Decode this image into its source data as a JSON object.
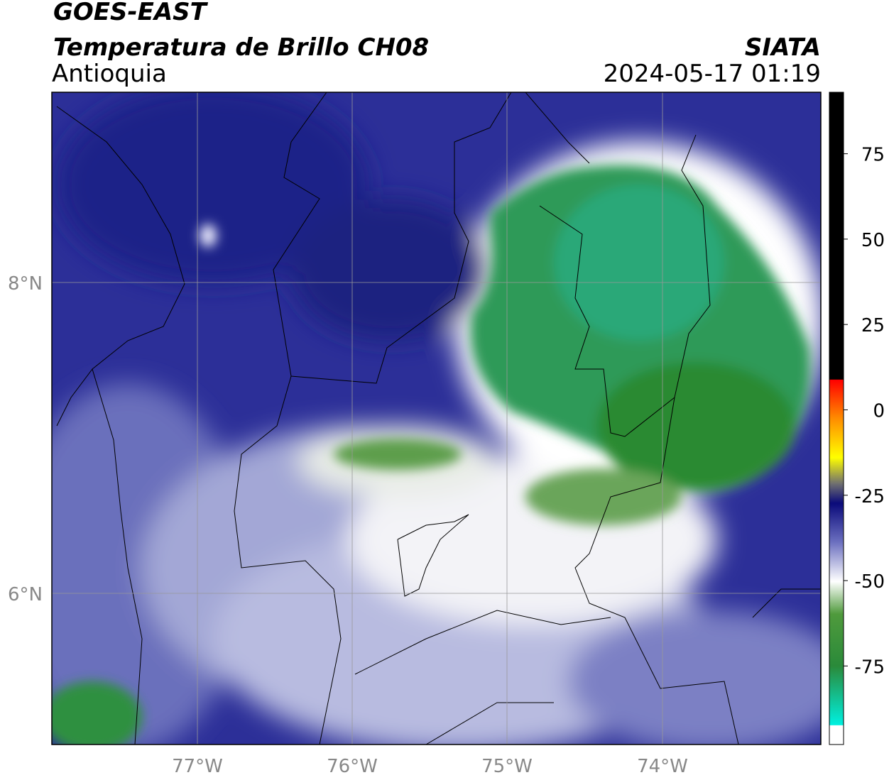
{
  "header": {
    "title": "GOES-EAST",
    "subtitle": "Temperatura de Brillo CH08",
    "region": "Antioquia",
    "source": "SIATA",
    "datetime": "2024-05-17 01:19"
  },
  "map": {
    "lat_labels": [
      "8°N",
      "6°N"
    ],
    "lon_labels": [
      "77°W",
      "76°W",
      "75°W",
      "74°W"
    ]
  },
  "colorbar": {
    "range": [
      -98,
      93
    ],
    "ticks": [
      75,
      50,
      25,
      0,
      -25,
      -50,
      -75
    ]
  }
}
